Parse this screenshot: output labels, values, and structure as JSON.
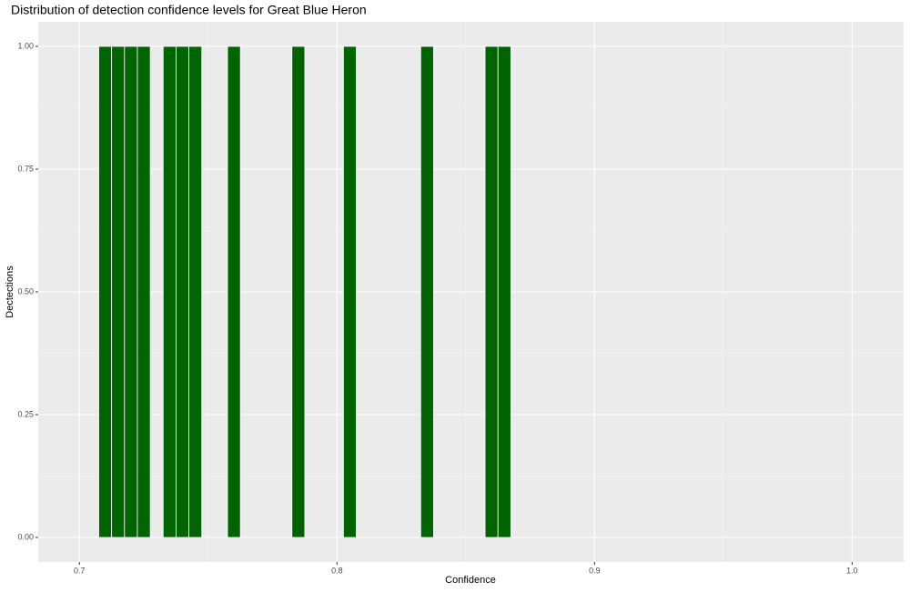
{
  "chart_data": {
    "type": "histogram",
    "title": "Distribution of detection confidence levels for Great Blue Heron",
    "x_label": "Confidence",
    "y_label": "Dectections",
    "bins": [
      0.7075,
      0.7125,
      0.7175,
      0.7225,
      0.7275,
      0.7325,
      0.7375,
      0.7425,
      0.7475,
      0.7525,
      0.7575,
      0.7625,
      0.7675,
      0.7725,
      0.7775,
      0.7825,
      0.7875,
      0.7925,
      0.7975,
      0.8025,
      0.8075,
      0.8125,
      0.8175,
      0.8225,
      0.8275,
      0.8325,
      0.8375,
      0.8425,
      0.8475,
      0.8525,
      0.8575,
      0.8625,
      0.8675
    ],
    "values": [
      1,
      1,
      1,
      1,
      0,
      1,
      1,
      1,
      0,
      0,
      1,
      0,
      0,
      0,
      0,
      1,
      0,
      0,
      0,
      1,
      0,
      0,
      0,
      0,
      0,
      1,
      0,
      0,
      0,
      0,
      1,
      1
    ],
    "color": "#006400",
    "xlim": [
      0.684,
      1.02
    ],
    "xticks": [
      0.7,
      0.8,
      0.9,
      {
        "value": 1.0,
        "label": "1.0"
      }
    ],
    "ylim": [
      -0.05,
      1.05
    ],
    "yticks": [
      {
        "value": 0,
        "label": "0.00"
      },
      {
        "value": 0.25,
        "label": "0.25"
      },
      {
        "value": 0.5,
        "label": "0.50"
      },
      {
        "value": 0.75,
        "label": "0.75"
      },
      {
        "value": 1,
        "label": "1.00"
      }
    ],
    "grid": true
  }
}
